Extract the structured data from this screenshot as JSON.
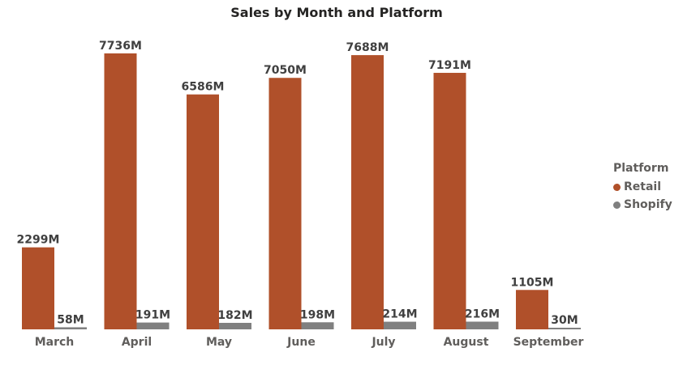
{
  "chart_data": {
    "type": "bar",
    "title": "Sales by Month and Platform",
    "categories": [
      "March",
      "April",
      "May",
      "June",
      "July",
      "August",
      "September"
    ],
    "series": [
      {
        "name": "Retail",
        "color": "#b0502a",
        "values": [
          2299,
          7736,
          6586,
          7050,
          7688,
          7191,
          1105
        ],
        "labels": [
          "2299M",
          "7736M",
          "6586M",
          "7050M",
          "7688M",
          "7191M",
          "1105M"
        ]
      },
      {
        "name": "Shopify",
        "color": "#808080",
        "values": [
          58,
          191,
          182,
          198,
          214,
          216,
          30
        ],
        "labels": [
          "58M",
          "191M",
          "182M",
          "198M",
          "214M",
          "216M",
          "30M"
        ]
      }
    ],
    "ylim": [
      0,
      8000
    ],
    "grid": false,
    "legend": {
      "title": "Platform",
      "position": "right"
    }
  }
}
